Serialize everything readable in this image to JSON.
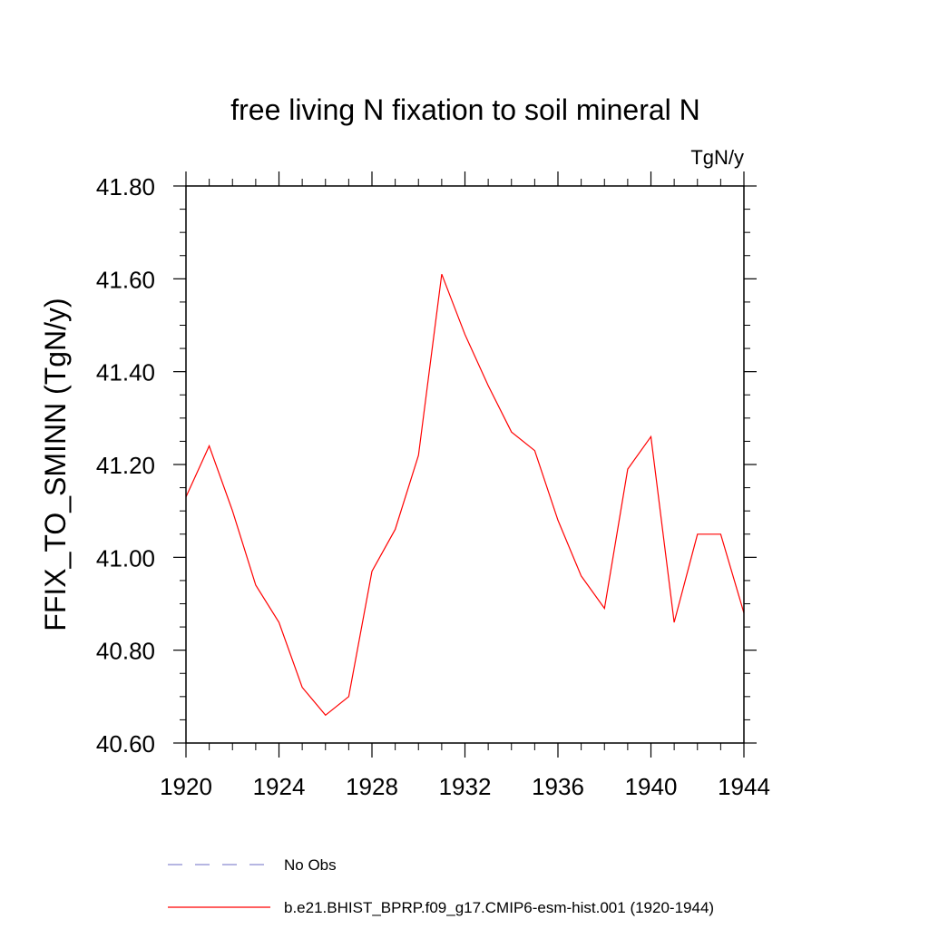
{
  "chart_data": {
    "type": "line",
    "title": "free living N fixation to soil mineral N",
    "units_label": "TgN/y",
    "ylabel": "FFIX_TO_SMINN  (TgN/y)",
    "xlabel": "",
    "xlim": [
      1920,
      1944
    ],
    "ylim": [
      40.6,
      41.8
    ],
    "x_ticks": [
      1920,
      1924,
      1928,
      1932,
      1936,
      1940,
      1944
    ],
    "y_ticks": [
      40.6,
      40.8,
      41.0,
      41.2,
      41.4,
      41.6,
      41.8
    ],
    "x_tick_labels": [
      "1920",
      "1924",
      "1928",
      "1932",
      "1936",
      "1940",
      "1944"
    ],
    "y_tick_labels": [
      "40.60",
      "40.80",
      "41.00",
      "41.20",
      "41.40",
      "41.60",
      "41.80"
    ],
    "grid": false,
    "legend_position": "bottom",
    "series": [
      {
        "name": "b.e21.BHIST_BPRP.f09_g17.CMIP6-esm-hist.001 (1920-1944)",
        "color": "#ff0000",
        "style": "solid",
        "x": [
          1920,
          1921,
          1922,
          1923,
          1924,
          1925,
          1926,
          1927,
          1928,
          1929,
          1930,
          1931,
          1932,
          1933,
          1934,
          1935,
          1936,
          1937,
          1938,
          1939,
          1940,
          1941,
          1942,
          1943,
          1944
        ],
        "values": [
          41.13,
          41.24,
          41.1,
          40.94,
          40.86,
          40.72,
          40.66,
          40.7,
          40.97,
          41.06,
          41.22,
          41.61,
          41.48,
          41.37,
          41.27,
          41.23,
          41.08,
          40.96,
          40.89,
          41.19,
          41.26,
          40.86,
          41.05,
          41.05,
          40.88
        ]
      },
      {
        "name": "No Obs",
        "color": "#8a8ad0",
        "style": "dashed",
        "x": [],
        "values": []
      }
    ]
  }
}
